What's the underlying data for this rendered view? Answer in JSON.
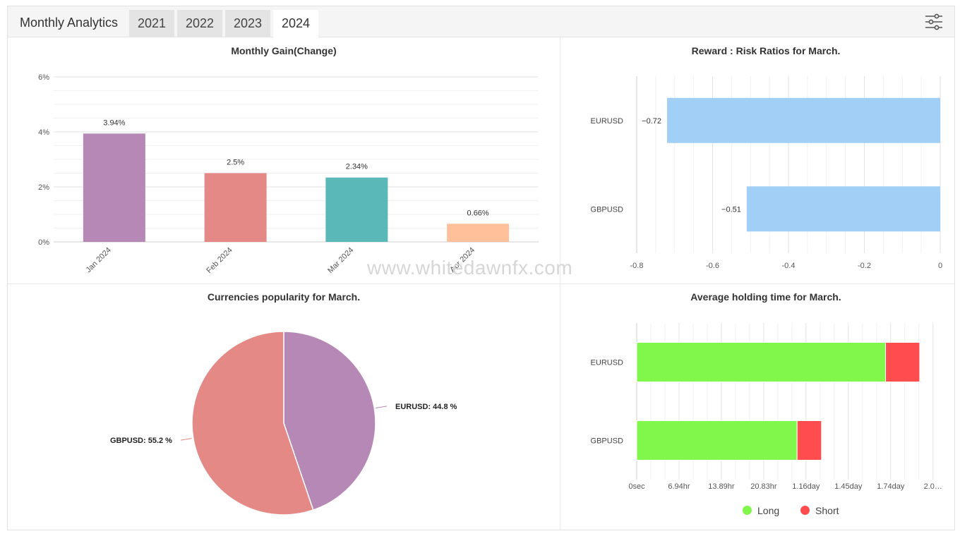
{
  "app_title": "Monthly Analytics",
  "year_tabs": [
    "2021",
    "2022",
    "2023",
    "2024"
  ],
  "active_year": "2024",
  "watermark": "www.whitedawnfx.com",
  "colors": {
    "purple": "#b688b6",
    "salmon": "#e48985",
    "teal": "#5bb8b8",
    "peach": "#ffc09a",
    "light_blue": "#a1cff6",
    "green": "#82f74b",
    "red": "#ff4d4f"
  },
  "chart_data": [
    {
      "id": "monthly_gain",
      "type": "bar",
      "title": "Monthly Gain(Change)",
      "categories": [
        "Jan 2024",
        "Feb 2024",
        "Mar 2024",
        "Apr 2024"
      ],
      "values": [
        3.94,
        2.5,
        2.34,
        0.66
      ],
      "data_labels": [
        "3.94%",
        "2.5%",
        "2.34%",
        "0.66%"
      ],
      "bar_colors": [
        "#b688b6",
        "#e48985",
        "#5bb8b8",
        "#ffc09a"
      ],
      "ylim": [
        0,
        6
      ],
      "yticks": [
        "0%",
        "2%",
        "4%",
        "6%"
      ],
      "xlabel": "",
      "ylabel": "",
      "grid": true
    },
    {
      "id": "reward_risk",
      "type": "bar",
      "orientation": "horizontal",
      "title": "Reward : Risk Ratios for March.",
      "categories": [
        "EURUSD",
        "GBPUSD"
      ],
      "values": [
        -0.72,
        -0.51
      ],
      "data_labels": [
        "−0.72",
        "−0.51"
      ],
      "color": "#a1cff6",
      "xlim": [
        -0.8,
        0
      ],
      "xticks": [
        "-0.8",
        "-0.6",
        "-0.4",
        "-0.2",
        "0"
      ]
    },
    {
      "id": "currencies_popularity",
      "type": "pie",
      "title": "Currencies popularity for March.",
      "slices": [
        {
          "label": "EURUSD: 44.8 %",
          "value": 44.8,
          "color": "#b688b6"
        },
        {
          "label": "GBPUSD: 55.2 %",
          "value": 55.2,
          "color": "#e48985"
        }
      ]
    },
    {
      "id": "avg_holding_time",
      "type": "bar",
      "orientation": "horizontal",
      "stacked": true,
      "title": "Average holding time for March.",
      "categories": [
        "EURUSD",
        "GBPUSD"
      ],
      "unit": "hours",
      "series": [
        {
          "name": "Long",
          "values": [
            40.8,
            26.3
          ],
          "color": "#82f74b"
        },
        {
          "name": "Short",
          "values": [
            5.6,
            4.0
          ],
          "color": "#ff4d4f"
        }
      ],
      "xlim": [
        0,
        50
      ],
      "xticks": [
        "0sec",
        "6.94hr",
        "13.89hr",
        "20.83hr",
        "1.16day",
        "1.45day",
        "1.74day",
        "2.0…"
      ]
    }
  ]
}
